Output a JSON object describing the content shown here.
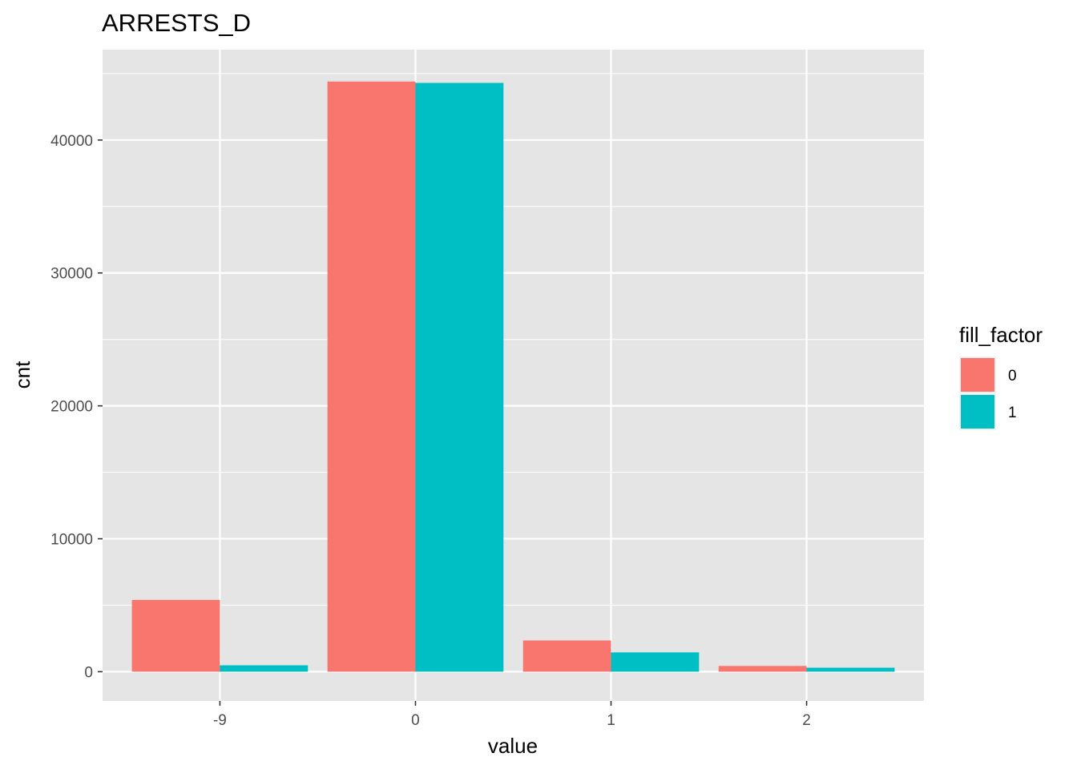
{
  "chart_data": {
    "type": "bar",
    "title": "ARRESTS_D",
    "xlabel": "value",
    "ylabel": "cnt",
    "categories": [
      "-9",
      "0",
      "1",
      "2"
    ],
    "series": [
      {
        "name": "0",
        "values": [
          5400,
          44400,
          2350,
          430
        ],
        "color": "#F8766D"
      },
      {
        "name": "1",
        "values": [
          480,
          44300,
          1450,
          300
        ],
        "color": "#00BFC4"
      }
    ],
    "ylim": [
      -2200,
      46800
    ],
    "yticks": [
      0,
      10000,
      20000,
      30000,
      40000
    ],
    "ytick_labels": [
      "0",
      "10000",
      "20000",
      "30000",
      "40000"
    ],
    "legend": {
      "title": "fill_factor",
      "placement": "right"
    },
    "grid": true,
    "panel_background": "#E5E5E5",
    "grid_color": "#FFFFFF"
  }
}
